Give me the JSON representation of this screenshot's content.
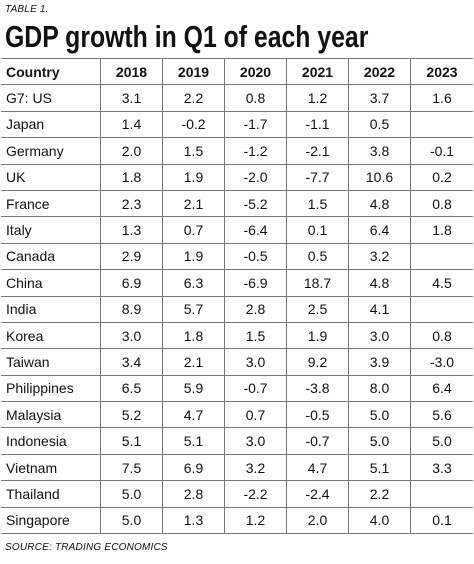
{
  "label": "TABLE 1.",
  "source": "SOURCE: TRADING ECONOMICS",
  "chart_data": {
    "type": "table",
    "title": "GDP growth in Q1 of each year",
    "columns": [
      "Country",
      "2018",
      "2019",
      "2020",
      "2021",
      "2022",
      "2023"
    ],
    "rows": [
      [
        "G7: US",
        "3.1",
        "2.2",
        "0.8",
        "1.2",
        "3.7",
        "1.6"
      ],
      [
        "Japan",
        "1.4",
        "-0.2",
        "-1.7",
        "-1.1",
        "0.5",
        ""
      ],
      [
        "Germany",
        "2.0",
        "1.5",
        "-1.2",
        "-2.1",
        "3.8",
        "-0.1"
      ],
      [
        "UK",
        "1.8",
        "1.9",
        "-2.0",
        "-7.7",
        "10.6",
        "0.2"
      ],
      [
        "France",
        "2.3",
        "2.1",
        "-5.2",
        "1.5",
        "4.8",
        "0.8"
      ],
      [
        "Italy",
        "1.3",
        "0.7",
        "-6.4",
        "0.1",
        "6.4",
        "1.8"
      ],
      [
        "Canada",
        "2.9",
        "1.9",
        "-0.5",
        "0.5",
        "3.2",
        ""
      ],
      [
        "China",
        "6.9",
        "6.3",
        "-6.9",
        "18.7",
        "4.8",
        "4.5"
      ],
      [
        "India",
        "8.9",
        "5.7",
        "2.8",
        "2.5",
        "4.1",
        ""
      ],
      [
        "Korea",
        "3.0",
        "1.8",
        "1.5",
        "1.9",
        "3.0",
        "0.8"
      ],
      [
        "Taiwan",
        "3.4",
        "2.1",
        "3.0",
        "9.2",
        "3.9",
        "-3.0"
      ],
      [
        "Philippines",
        "6.5",
        "5.9",
        "-0.7",
        "-3.8",
        "8.0",
        "6.4"
      ],
      [
        "Malaysia",
        "5.2",
        "4.7",
        "0.7",
        "-0.5",
        "5.0",
        "5.6"
      ],
      [
        "Indonesia",
        "5.1",
        "5.1",
        "3.0",
        "-0.7",
        "5.0",
        "5.0"
      ],
      [
        "Vietnam",
        "7.5",
        "6.9",
        "3.2",
        "4.7",
        "5.1",
        "3.3"
      ],
      [
        "Thailand",
        "5.0",
        "2.8",
        "-2.2",
        "-2.4",
        "2.2",
        ""
      ],
      [
        "Singapore",
        "5.0",
        "1.3",
        "1.2",
        "2.0",
        "4.0",
        "0.1"
      ]
    ]
  }
}
